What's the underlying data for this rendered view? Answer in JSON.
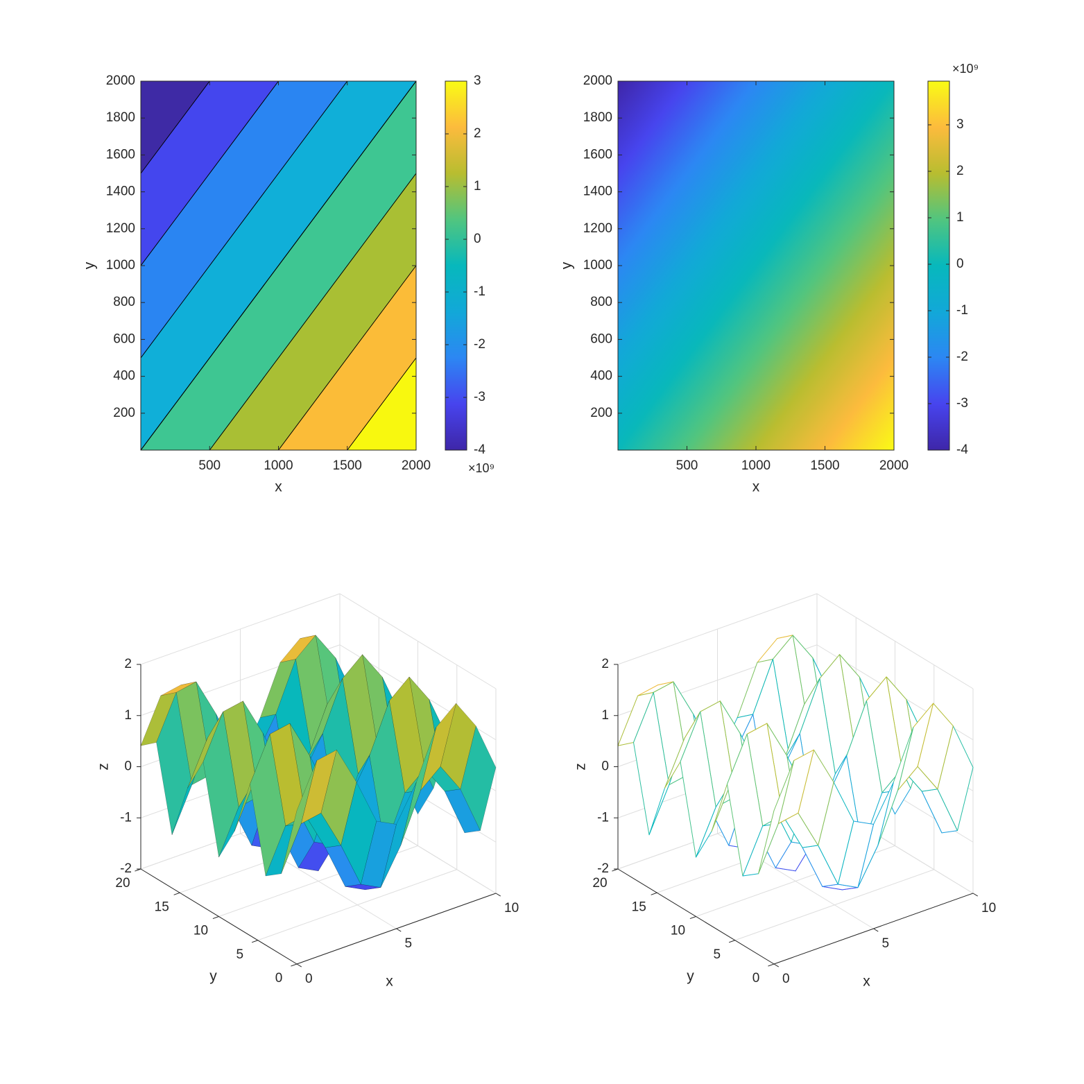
{
  "colormap": [
    "#3e26a8",
    "#4744ee",
    "#2c87f3",
    "#12a8d8",
    "#07b8bc",
    "#51c57f",
    "#b8bd30",
    "#fcbb3d",
    "#f9fb15"
  ],
  "chart_data": [
    {
      "type": "contourf",
      "x": [
        0,
        2000
      ],
      "y": [
        0,
        2000
      ],
      "z": [
        [
          0,
          4
        ],
        [
          -4,
          0
        ]
      ],
      "levels": [
        -4,
        -3,
        -2,
        -1,
        0,
        1,
        2,
        3
      ],
      "band_colors": [
        "#3e2aa5",
        "#4446ee",
        "#2a85f2",
        "#10afd8",
        "#3ec692",
        "#a9bf34",
        "#fbbc38",
        "#f8f80f"
      ],
      "xlim": [
        0,
        2000
      ],
      "ylim": [
        0,
        2000
      ],
      "xticks": [
        500,
        1000,
        1500,
        2000
      ],
      "yticks": [
        200,
        400,
        600,
        800,
        1000,
        1200,
        1400,
        1600,
        1800,
        2000
      ],
      "xlabel": "x",
      "ylabel": "y",
      "clim": [
        -4,
        3
      ],
      "cticks": [
        -4,
        -3,
        -2,
        -1,
        0,
        1,
        2,
        3
      ],
      "cexponent": "×10⁹"
    },
    {
      "type": "image",
      "x": [
        0,
        2000
      ],
      "y": [
        0,
        2000
      ],
      "z": [
        [
          0,
          3.94
        ],
        [
          -4,
          0
        ]
      ],
      "xlim": [
        0,
        2000
      ],
      "ylim": [
        0,
        2000
      ],
      "xticks": [
        500,
        1000,
        1500,
        2000
      ],
      "yticks": [
        200,
        400,
        600,
        800,
        1000,
        1200,
        1400,
        1600,
        1800,
        2000
      ],
      "xlabel": "x",
      "ylabel": "y",
      "clim": [
        -4,
        3.94
      ],
      "cticks": [
        -4,
        -3,
        -2,
        -1,
        0,
        1,
        2,
        3
      ],
      "cexponent": "×10⁹"
    },
    {
      "type": "surface",
      "x": [
        0,
        1,
        2,
        3,
        4,
        5,
        6,
        7,
        8,
        9,
        10
      ],
      "y": [
        0,
        2,
        4,
        6,
        8,
        10,
        12,
        14,
        16,
        18,
        20
      ],
      "z": [
        [
          1,
          1.84,
          1.91,
          1.14,
          0.24,
          0.04,
          0.72,
          1.66,
          1.99,
          1.41,
          0.46
        ],
        [
          -0.42,
          0.42,
          0.49,
          -0.28,
          -1.18,
          -1.38,
          -0.7,
          0.24,
          0.57,
          -0.01,
          -0.96
        ],
        [
          -0.65,
          0.19,
          0.26,
          -0.51,
          -1.41,
          -1.61,
          -0.93,
          0.01,
          0.34,
          -0.24,
          -1.19
        ],
        [
          0.96,
          1.8,
          1.87,
          1.1,
          0.2,
          0,
          0.68,
          1.62,
          1.95,
          1.37,
          0.42
        ],
        [
          -0.15,
          0.69,
          0.76,
          -0.01,
          -0.91,
          -1.11,
          -0.43,
          0.51,
          0.84,
          0.26,
          -0.69
        ],
        [
          -0.84,
          0,
          0.07,
          -0.7,
          -1.6,
          -1.8,
          -1.12,
          -0.18,
          0.15,
          -0.43,
          -1.38
        ],
        [
          0.84,
          1.68,
          1.75,
          0.98,
          0.08,
          -0.12,
          0.56,
          1.5,
          1.83,
          1.25,
          0.3
        ],
        [
          0.14,
          0.98,
          1.05,
          0.28,
          -0.62,
          -0.82,
          -0.14,
          0.8,
          1.13,
          0.55,
          -0.4
        ],
        [
          -0.96,
          -0.12,
          -0.05,
          -0.82,
          -1.72,
          -1.92,
          -1.24,
          -0.3,
          0.03,
          -0.55,
          -1.5
        ],
        [
          0.66,
          1.5,
          1.57,
          0.8,
          -0.1,
          -0.3,
          0.38,
          1.32,
          1.65,
          1.07,
          0.12
        ],
        [
          0.41,
          1.25,
          1.32,
          0.55,
          -0.35,
          -0.55,
          0.13,
          1.07,
          1.4,
          0.82,
          -0.13
        ]
      ],
      "xlim": [
        0,
        10
      ],
      "ylim": [
        0,
        20
      ],
      "zlim": [
        -2,
        2
      ],
      "xticks": [
        0,
        5,
        10
      ],
      "yticks": [
        0,
        5,
        10,
        15,
        20
      ],
      "zticks": [
        -2,
        -1,
        0,
        1,
        2
      ],
      "xlabel": "x",
      "ylabel": "y",
      "zlabel": "z",
      "edge_color": "#000000"
    },
    {
      "type": "mesh",
      "x": [
        0,
        1,
        2,
        3,
        4,
        5,
        6,
        7,
        8,
        9,
        10
      ],
      "y": [
        0,
        2,
        4,
        6,
        8,
        10,
        12,
        14,
        16,
        18,
        20
      ],
      "z": [
        [
          1,
          1.84,
          1.91,
          1.14,
          0.24,
          0.04,
          0.72,
          1.66,
          1.99,
          1.41,
          0.46
        ],
        [
          -0.42,
          0.42,
          0.49,
          -0.28,
          -1.18,
          -1.38,
          -0.7,
          0.24,
          0.57,
          -0.01,
          -0.96
        ],
        [
          -0.65,
          0.19,
          0.26,
          -0.51,
          -1.41,
          -1.61,
          -0.93,
          0.01,
          0.34,
          -0.24,
          -1.19
        ],
        [
          0.96,
          1.8,
          1.87,
          1.1,
          0.2,
          0,
          0.68,
          1.62,
          1.95,
          1.37,
          0.42
        ],
        [
          -0.15,
          0.69,
          0.76,
          -0.01,
          -0.91,
          -1.11,
          -0.43,
          0.51,
          0.84,
          0.26,
          -0.69
        ],
        [
          -0.84,
          0,
          0.07,
          -0.7,
          -1.6,
          -1.8,
          -1.12,
          -0.18,
          0.15,
          -0.43,
          -1.38
        ],
        [
          0.84,
          1.68,
          1.75,
          0.98,
          0.08,
          -0.12,
          0.56,
          1.5,
          1.83,
          1.25,
          0.3
        ],
        [
          0.14,
          0.98,
          1.05,
          0.28,
          -0.62,
          -0.82,
          -0.14,
          0.8,
          1.13,
          0.55,
          -0.4
        ],
        [
          -0.96,
          -0.12,
          -0.05,
          -0.82,
          -1.72,
          -1.92,
          -1.24,
          -0.3,
          0.03,
          -0.55,
          -1.5
        ],
        [
          0.66,
          1.5,
          1.57,
          0.8,
          -0.1,
          -0.3,
          0.38,
          1.32,
          1.65,
          1.07,
          0.12
        ],
        [
          0.41,
          1.25,
          1.32,
          0.55,
          -0.35,
          -0.55,
          0.13,
          1.07,
          1.4,
          0.82,
          -0.13
        ]
      ],
      "xlim": [
        0,
        10
      ],
      "ylim": [
        0,
        20
      ],
      "zlim": [
        -2,
        2
      ],
      "xticks": [
        0,
        5,
        10
      ],
      "yticks": [
        0,
        5,
        10,
        15,
        20
      ],
      "zticks": [
        -2,
        -1,
        0,
        1,
        2
      ],
      "xlabel": "x",
      "ylabel": "y",
      "zlabel": "z",
      "face_color": "#ffffff"
    }
  ]
}
